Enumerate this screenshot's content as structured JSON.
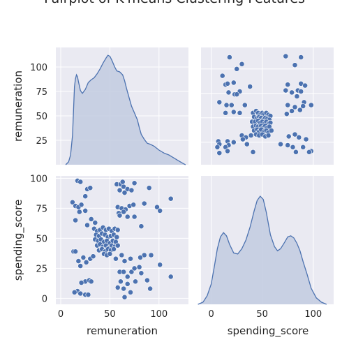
{
  "chart_data": {
    "type": "pairplot",
    "title": "Pairplot of K-means Clustering Features",
    "variables": [
      "remuneration",
      "spending_score"
    ],
    "colors": {
      "background": "#eaeaf2",
      "grid": "#ffffff",
      "point": "#4c72b0",
      "kde_fill": "#c2cbe0",
      "kde_line": "#4c72b0"
    },
    "grid": true,
    "panels": [
      {
        "id": "remuneration-kde",
        "kind": "kde",
        "xvar": "remuneration",
        "xlim": [
          -5,
          130
        ],
        "yticks": [
          25,
          50,
          75,
          100
        ],
        "ylim": [
          0,
          120
        ],
        "ylabel": "remuneration",
        "curve": [
          [
            5,
            0
          ],
          [
            8,
            3
          ],
          [
            10,
            10
          ],
          [
            12,
            30
          ],
          [
            13,
            55
          ],
          [
            14,
            80
          ],
          [
            15,
            88
          ],
          [
            16,
            92
          ],
          [
            17,
            90
          ],
          [
            18,
            85
          ],
          [
            20,
            76
          ],
          [
            22,
            73
          ],
          [
            25,
            77
          ],
          [
            28,
            84
          ],
          [
            31,
            87
          ],
          [
            34,
            89
          ],
          [
            37,
            93
          ],
          [
            40,
            98
          ],
          [
            43,
            104
          ],
          [
            46,
            109
          ],
          [
            48,
            112
          ],
          [
            50,
            111
          ],
          [
            52,
            107
          ],
          [
            55,
            100
          ],
          [
            57,
            96
          ],
          [
            60,
            95
          ],
          [
            63,
            92
          ],
          [
            65,
            86
          ],
          [
            67,
            78
          ],
          [
            70,
            67
          ],
          [
            72,
            60
          ],
          [
            75,
            53
          ],
          [
            78,
            46
          ],
          [
            80,
            38
          ],
          [
            82,
            31
          ],
          [
            85,
            26
          ],
          [
            88,
            22
          ],
          [
            91,
            21
          ],
          [
            95,
            19
          ],
          [
            100,
            15
          ],
          [
            105,
            12
          ],
          [
            110,
            10
          ],
          [
            115,
            7
          ],
          [
            120,
            4
          ],
          [
            125,
            1
          ],
          [
            127,
            0
          ]
        ]
      },
      {
        "id": "spending-vs-remuneration",
        "kind": "scatter",
        "xvar": "spending_score",
        "yvar": "remuneration",
        "xlim": [
          -10,
          120
        ],
        "ylim": [
          2,
          122
        ],
        "points": [
          [
            18,
            112
          ],
          [
            30,
            105
          ],
          [
            25,
            100
          ],
          [
            11,
            93
          ],
          [
            14,
            84
          ],
          [
            16,
            85
          ],
          [
            22,
            86
          ],
          [
            17,
            76
          ],
          [
            23,
            74
          ],
          [
            28,
            77
          ],
          [
            25,
            74
          ],
          [
            38,
            82
          ],
          [
            8,
            66
          ],
          [
            15,
            63
          ],
          [
            20,
            63
          ],
          [
            33,
            63
          ],
          [
            14,
            55
          ],
          [
            22,
            56
          ],
          [
            28,
            55
          ],
          [
            7,
            26
          ],
          [
            8,
            23
          ],
          [
            6,
            20
          ],
          [
            8,
            14
          ],
          [
            16,
            26
          ],
          [
            17,
            22
          ],
          [
            14,
            20
          ],
          [
            16,
            16
          ],
          [
            22,
            25
          ],
          [
            30,
            32
          ],
          [
            34,
            30
          ],
          [
            31,
            28
          ],
          [
            35,
            23
          ],
          [
            39,
            32
          ],
          [
            41,
            15
          ],
          [
            73,
            78
          ],
          [
            79,
            76
          ],
          [
            85,
            78
          ],
          [
            88,
            77
          ],
          [
            84,
            72
          ],
          [
            73,
            113
          ],
          [
            82,
            104
          ],
          [
            88,
            112
          ],
          [
            75,
            84
          ],
          [
            88,
            85
          ],
          [
            92,
            83
          ],
          [
            91,
            66
          ],
          [
            75,
            63
          ],
          [
            82,
            61
          ],
          [
            90,
            62
          ],
          [
            98,
            63
          ],
          [
            79,
            57
          ],
          [
            87,
            58
          ],
          [
            74,
            54
          ],
          [
            76,
            31
          ],
          [
            82,
            33
          ],
          [
            86,
            30
          ],
          [
            93,
            28
          ],
          [
            68,
            23
          ],
          [
            75,
            22
          ],
          [
            80,
            20
          ],
          [
            83,
            15
          ],
          [
            90,
            20
          ],
          [
            98,
            16
          ],
          [
            96,
            15
          ],
          [
            41,
            55
          ],
          [
            44,
            57
          ],
          [
            46,
            55
          ],
          [
            48,
            53
          ],
          [
            50,
            55
          ],
          [
            52,
            54
          ],
          [
            54,
            55
          ],
          [
            56,
            53
          ],
          [
            58,
            52
          ],
          [
            42,
            51
          ],
          [
            45,
            50
          ],
          [
            47,
            51
          ],
          [
            49,
            50
          ],
          [
            51,
            48
          ],
          [
            53,
            50
          ],
          [
            55,
            49
          ],
          [
            57,
            48
          ],
          [
            40,
            46
          ],
          [
            43,
            46
          ],
          [
            46,
            47
          ],
          [
            48,
            45
          ],
          [
            50,
            46
          ],
          [
            52,
            44
          ],
          [
            54,
            46
          ],
          [
            56,
            44
          ],
          [
            58,
            45
          ],
          [
            41,
            41
          ],
          [
            44,
            42
          ],
          [
            46,
            41
          ],
          [
            49,
            42
          ],
          [
            51,
            40
          ],
          [
            53,
            42
          ],
          [
            55,
            40
          ],
          [
            57,
            41
          ],
          [
            42,
            37
          ],
          [
            45,
            38
          ],
          [
            47,
            36
          ],
          [
            49,
            38
          ],
          [
            52,
            36
          ],
          [
            54,
            37
          ],
          [
            56,
            35
          ],
          [
            59,
            37
          ],
          [
            44,
            33
          ],
          [
            47,
            32
          ],
          [
            50,
            33
          ],
          [
            53,
            31
          ],
          [
            56,
            32
          ]
        ]
      },
      {
        "id": "remuneration-vs-spending",
        "kind": "scatter",
        "xvar": "remuneration",
        "yvar": "spending_score",
        "xlim": [
          -5,
          130
        ],
        "ylim": [
          -5,
          102
        ],
        "xticks": [
          0,
          50,
          100
        ],
        "yticks": [
          0,
          25,
          50,
          75,
          100
        ],
        "xlabel": "remuneration",
        "ylabel": "spending_score",
        "points": [
          [
            17,
            98
          ],
          [
            20,
            97
          ],
          [
            27,
            91
          ],
          [
            25,
            85
          ],
          [
            12,
            80
          ],
          [
            15,
            77
          ],
          [
            18,
            76
          ],
          [
            19,
            72
          ],
          [
            25,
            73
          ],
          [
            21,
            78
          ],
          [
            30,
            92
          ],
          [
            15,
            65
          ],
          [
            27,
            61
          ],
          [
            31,
            66
          ],
          [
            35,
            63
          ],
          [
            13,
            39
          ],
          [
            15,
            39
          ],
          [
            18,
            31
          ],
          [
            20,
            27
          ],
          [
            23,
            34
          ],
          [
            26,
            30
          ],
          [
            30,
            33
          ],
          [
            33,
            35
          ],
          [
            25,
            14
          ],
          [
            21,
            13
          ],
          [
            29,
            15
          ],
          [
            17,
            6
          ],
          [
            14,
            5
          ],
          [
            20,
            4
          ],
          [
            25,
            3
          ],
          [
            28,
            3
          ],
          [
            31,
            14
          ],
          [
            57,
            95
          ],
          [
            61,
            95
          ],
          [
            64,
            93
          ],
          [
            68,
            91
          ],
          [
            60,
            90
          ],
          [
            65,
            88
          ],
          [
            72,
            90
          ],
          [
            75,
            96
          ],
          [
            63,
            97
          ],
          [
            58,
            76
          ],
          [
            62,
            75
          ],
          [
            66,
            74
          ],
          [
            70,
            77
          ],
          [
            74,
            78
          ],
          [
            59,
            71
          ],
          [
            64,
            72
          ],
          [
            60,
            69
          ],
          [
            68,
            68
          ],
          [
            75,
            68
          ],
          [
            85,
            79
          ],
          [
            90,
            92
          ],
          [
            98,
            76
          ],
          [
            101,
            73
          ],
          [
            112,
            83
          ],
          [
            82,
            60
          ],
          [
            85,
            36
          ],
          [
            92,
            36
          ],
          [
            81,
            34
          ],
          [
            62,
            36
          ],
          [
            56,
            33
          ],
          [
            65,
            31
          ],
          [
            71,
            33
          ],
          [
            60,
            22
          ],
          [
            64,
            22
          ],
          [
            72,
            22
          ],
          [
            68,
            18
          ],
          [
            61,
            14
          ],
          [
            68,
            12
          ],
          [
            76,
            14
          ],
          [
            58,
            9
          ],
          [
            64,
            8
          ],
          [
            71,
            5
          ],
          [
            65,
            1
          ],
          [
            80,
            26
          ],
          [
            82,
            21
          ],
          [
            75,
            25
          ],
          [
            88,
            15
          ],
          [
            91,
            8
          ],
          [
            101,
            28
          ],
          [
            112,
            18
          ],
          [
            34,
            58
          ],
          [
            37,
            56
          ],
          [
            40,
            57
          ],
          [
            43,
            59
          ],
          [
            46,
            57
          ],
          [
            49,
            58
          ],
          [
            52,
            56
          ],
          [
            55,
            58
          ],
          [
            58,
            57
          ],
          [
            36,
            53
          ],
          [
            39,
            52
          ],
          [
            42,
            54
          ],
          [
            45,
            53
          ],
          [
            48,
            51
          ],
          [
            51,
            52
          ],
          [
            54,
            53
          ],
          [
            57,
            51
          ],
          [
            35,
            49
          ],
          [
            38,
            48
          ],
          [
            41,
            49
          ],
          [
            44,
            47
          ],
          [
            47,
            48
          ],
          [
            50,
            46
          ],
          [
            53,
            48
          ],
          [
            56,
            47
          ],
          [
            37,
            44
          ],
          [
            40,
            45
          ],
          [
            43,
            43
          ],
          [
            46,
            44
          ],
          [
            49,
            42
          ],
          [
            52,
            44
          ],
          [
            55,
            43
          ],
          [
            58,
            44
          ],
          [
            39,
            40
          ],
          [
            42,
            41
          ],
          [
            45,
            39
          ],
          [
            48,
            41
          ],
          [
            51,
            40
          ],
          [
            54,
            41
          ],
          [
            44,
            37
          ],
          [
            47,
            36
          ],
          [
            50,
            37
          ]
        ]
      },
      {
        "id": "spending-kde",
        "kind": "kde",
        "xvar": "spending_score",
        "xlim": [
          -10,
          120
        ],
        "xticks": [
          0,
          50,
          100
        ],
        "xlabel": "spending_score",
        "ylim": [
          0,
          120
        ],
        "curve": [
          [
            -13,
            0
          ],
          [
            -8,
            2
          ],
          [
            -4,
            8
          ],
          [
            0,
            19
          ],
          [
            3,
            35
          ],
          [
            6,
            52
          ],
          [
            9,
            63
          ],
          [
            12,
            67
          ],
          [
            15,
            64
          ],
          [
            18,
            56
          ],
          [
            22,
            48
          ],
          [
            26,
            47
          ],
          [
            30,
            52
          ],
          [
            34,
            60
          ],
          [
            38,
            72
          ],
          [
            42,
            87
          ],
          [
            45,
            97
          ],
          [
            48,
            101
          ],
          [
            51,
            98
          ],
          [
            54,
            86
          ],
          [
            58,
            65
          ],
          [
            62,
            54
          ],
          [
            65,
            50
          ],
          [
            68,
            52
          ],
          [
            72,
            58
          ],
          [
            75,
            63
          ],
          [
            78,
            64
          ],
          [
            81,
            62
          ],
          [
            84,
            57
          ],
          [
            87,
            50
          ],
          [
            90,
            40
          ],
          [
            94,
            28
          ],
          [
            98,
            15
          ],
          [
            103,
            6
          ],
          [
            108,
            2
          ],
          [
            113,
            0
          ]
        ]
      }
    ]
  }
}
